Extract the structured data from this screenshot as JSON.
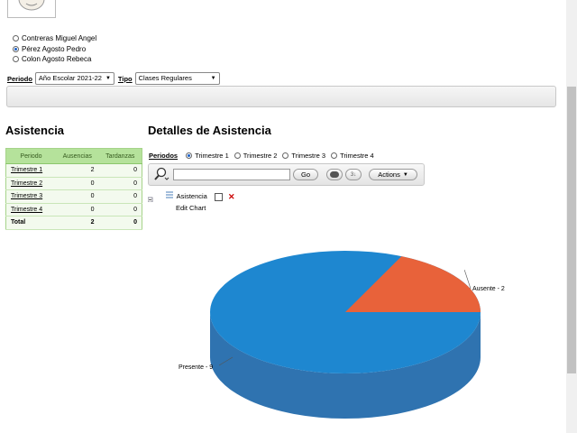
{
  "students": [
    {
      "name": "Contreras Miguel Angel",
      "selected": false
    },
    {
      "name": "Pérez Agosto Pedro",
      "selected": true
    },
    {
      "name": "Colon Agosto Rebeca",
      "selected": false
    }
  ],
  "filters": {
    "period_label": "Periodo",
    "period_value": "Año Escolar 2021-22",
    "type_label": "Tipo",
    "type_value": "Clases Regulares"
  },
  "attendance": {
    "title": "Asistencia",
    "headers": [
      "Periodo",
      "Ausencias",
      "Tardanzas"
    ],
    "rows": [
      {
        "period": "Trimestre 1",
        "absences": "2",
        "tardies": "0"
      },
      {
        "period": "Trimestre 2",
        "absences": "0",
        "tardies": "0"
      },
      {
        "period": "Trimestre 3",
        "absences": "0",
        "tardies": "0"
      },
      {
        "period": "Trimestre 4",
        "absences": "0",
        "tardies": "0"
      }
    ],
    "total": {
      "label": "Total",
      "absences": "2",
      "tardies": "0"
    }
  },
  "details": {
    "title": "Detalles de Asistencia",
    "periods_label": "Periodos",
    "periods": [
      {
        "label": "Trimestre 1",
        "selected": true
      },
      {
        "label": "Trimestre 2",
        "selected": false
      },
      {
        "label": "Trimestre 3",
        "selected": false
      },
      {
        "label": "Trimestre 4",
        "selected": false
      }
    ],
    "go_label": "Go",
    "actions_label": "Actions",
    "report_label": "Asistencia",
    "edit_chart_label": "Edit Chart"
  },
  "colors": {
    "present": "#1e87d0",
    "absent": "#e8623a",
    "table_header": "#b5e29b"
  },
  "chart_data": {
    "type": "pie",
    "title": "",
    "slices": [
      {
        "label": "Ausente - 2",
        "value": 2,
        "color": "#e8623a"
      },
      {
        "label": "Presente - 9",
        "value": 9,
        "color": "#1e87d0"
      }
    ]
  }
}
